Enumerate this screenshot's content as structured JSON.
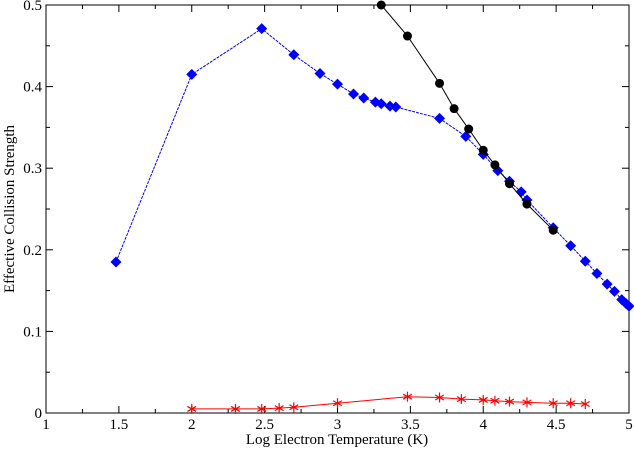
{
  "chart_data": {
    "type": "line",
    "title": "",
    "xlabel": "Log Electron Temperature (K)",
    "ylabel": "Effective Collision Strength",
    "xlim": [
      1,
      5
    ],
    "ylim": [
      0,
      0.5
    ],
    "xticks": [
      "1",
      "1.5",
      "2",
      "2.5",
      "3",
      "3.5",
      "4",
      "4.5",
      "5"
    ],
    "xtick_values": [
      1,
      1.5,
      2,
      2.5,
      3,
      3.5,
      4,
      4.5,
      5
    ],
    "yticks": [
      "0",
      "0.1",
      "0.2",
      "0.3",
      "0.4",
      "0.5"
    ],
    "ytick_values": [
      0,
      0.1,
      0.2,
      0.3,
      0.4,
      0.5
    ],
    "grid": false,
    "series": [
      {
        "color": "#0000ff",
        "marker": "diamond",
        "points": [
          [
            1.48,
            0.185
          ],
          [
            2.0,
            0.415
          ],
          [
            2.48,
            0.471
          ],
          [
            2.7,
            0.439
          ],
          [
            2.88,
            0.416
          ],
          [
            3.0,
            0.403
          ],
          [
            3.11,
            0.391
          ],
          [
            3.18,
            0.386
          ],
          [
            3.26,
            0.381
          ],
          [
            3.3,
            0.379
          ],
          [
            3.36,
            0.376
          ],
          [
            3.4,
            0.375
          ],
          [
            3.7,
            0.361
          ],
          [
            3.88,
            0.339
          ],
          [
            4.0,
            0.317
          ],
          [
            4.1,
            0.297
          ],
          [
            4.18,
            0.284
          ],
          [
            4.26,
            0.271
          ],
          [
            4.3,
            0.261
          ],
          [
            4.48,
            0.227
          ],
          [
            4.6,
            0.205
          ],
          [
            4.7,
            0.186
          ],
          [
            4.78,
            0.171
          ],
          [
            4.85,
            0.158
          ],
          [
            4.9,
            0.149
          ],
          [
            4.95,
            0.139
          ],
          [
            4.98,
            0.134
          ],
          [
            5.0,
            0.131
          ]
        ]
      },
      {
        "color": "#000000",
        "marker": "circle",
        "points": [
          [
            3.3,
            0.5
          ],
          [
            3.48,
            0.462
          ],
          [
            3.7,
            0.404
          ],
          [
            3.8,
            0.373
          ],
          [
            3.9,
            0.348
          ],
          [
            4.0,
            0.322
          ],
          [
            4.08,
            0.304
          ],
          [
            4.18,
            0.281
          ],
          [
            4.3,
            0.256
          ],
          [
            4.48,
            0.224
          ]
        ]
      },
      {
        "color": "#ff0000",
        "marker": "star",
        "points": [
          [
            2.0,
            0.005
          ],
          [
            2.3,
            0.005
          ],
          [
            2.48,
            0.005
          ],
          [
            2.6,
            0.006
          ],
          [
            2.7,
            0.007
          ],
          [
            3.0,
            0.012
          ],
          [
            3.48,
            0.02
          ],
          [
            3.7,
            0.019
          ],
          [
            3.85,
            0.017
          ],
          [
            4.0,
            0.016
          ],
          [
            4.08,
            0.015
          ],
          [
            4.18,
            0.014
          ],
          [
            4.3,
            0.013
          ],
          [
            4.48,
            0.012
          ],
          [
            4.6,
            0.012
          ],
          [
            4.7,
            0.011
          ]
        ]
      }
    ]
  }
}
